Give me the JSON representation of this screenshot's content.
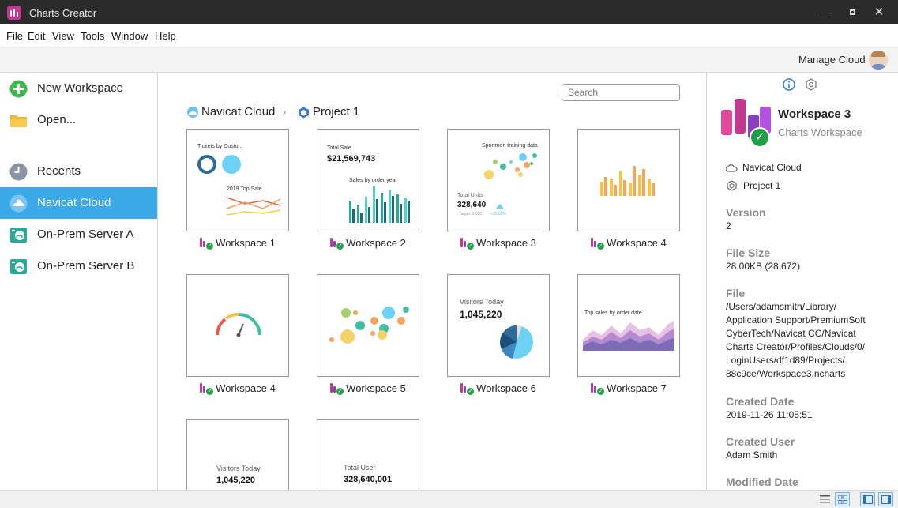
{
  "window": {
    "title": "Charts Creator"
  },
  "menu": [
    "File",
    "Edit",
    "View",
    "Tools",
    "Window",
    "Help"
  ],
  "toolbar": {
    "manage_cloud": "Manage Cloud"
  },
  "sidebar": {
    "items": [
      {
        "label": "New Workspace",
        "icon": "plus-circle-icon"
      },
      {
        "label": "Open...",
        "icon": "folder-icon"
      },
      {
        "label": "Recents",
        "icon": "clock-icon"
      },
      {
        "label": "Navicat Cloud",
        "icon": "cloud-icon",
        "active": true
      },
      {
        "label": "On-Prem Server A",
        "icon": "server-icon"
      },
      {
        "label": "On-Prem Server B",
        "icon": "server-icon"
      }
    ]
  },
  "main": {
    "search_placeholder": "Search",
    "breadcrumb": [
      "Navicat Cloud",
      "Project 1"
    ],
    "cards": [
      {
        "name": "Workspace 1",
        "texts": [
          "Tickets by Custo...",
          "2019 Top Sale"
        ]
      },
      {
        "name": "Workspace 2",
        "texts": [
          "Total Sale",
          "$21,569,743",
          "Sales by order year"
        ]
      },
      {
        "name": "Workspace 3",
        "texts": [
          "Sportmen training data",
          "Total Units",
          "328,640",
          "Target: 3,000",
          "+35.00%"
        ]
      },
      {
        "name": "Workspace 4",
        "texts": []
      },
      {
        "name": "Workspace 4",
        "texts": []
      },
      {
        "name": "Workspace 5",
        "texts": []
      },
      {
        "name": "Workspace 6",
        "texts": [
          "Visitors Today",
          "1,045,220"
        ]
      },
      {
        "name": "Workspace 7",
        "texts": [
          "Top sales by order date"
        ]
      },
      {
        "name": "",
        "texts": [
          "Visitors Today",
          "1,045,220"
        ]
      },
      {
        "name": "",
        "texts": [
          "Total User",
          "328,640,001"
        ]
      }
    ]
  },
  "panel": {
    "title": "Workspace 3",
    "subtitle": "Charts Workspace",
    "location": [
      "Navicat Cloud",
      "Project 1"
    ],
    "fields": [
      {
        "label": "Version",
        "value": "2"
      },
      {
        "label": "File Size",
        "value": "28.00KB (28,672)"
      },
      {
        "label": "File",
        "value": "/Users/adamsmith/Library/ Application Support/PremiumSoft CyberTech/Navicat CC/Navicat Charts Creator/Profiles/Clouds/0/ LoginUsers/df1d89/Projects/ 88c9ce/Workspace3.ncharts"
      },
      {
        "label": "Created Date",
        "value": "2019-11-26 11:05:51"
      },
      {
        "label": "Created User",
        "value": "Adam Smith"
      },
      {
        "label": "Modified Date",
        "value": ""
      }
    ]
  },
  "colors": {
    "accent": "#3ba8e8",
    "brand": "#c0398f",
    "check": "#27a04a"
  }
}
